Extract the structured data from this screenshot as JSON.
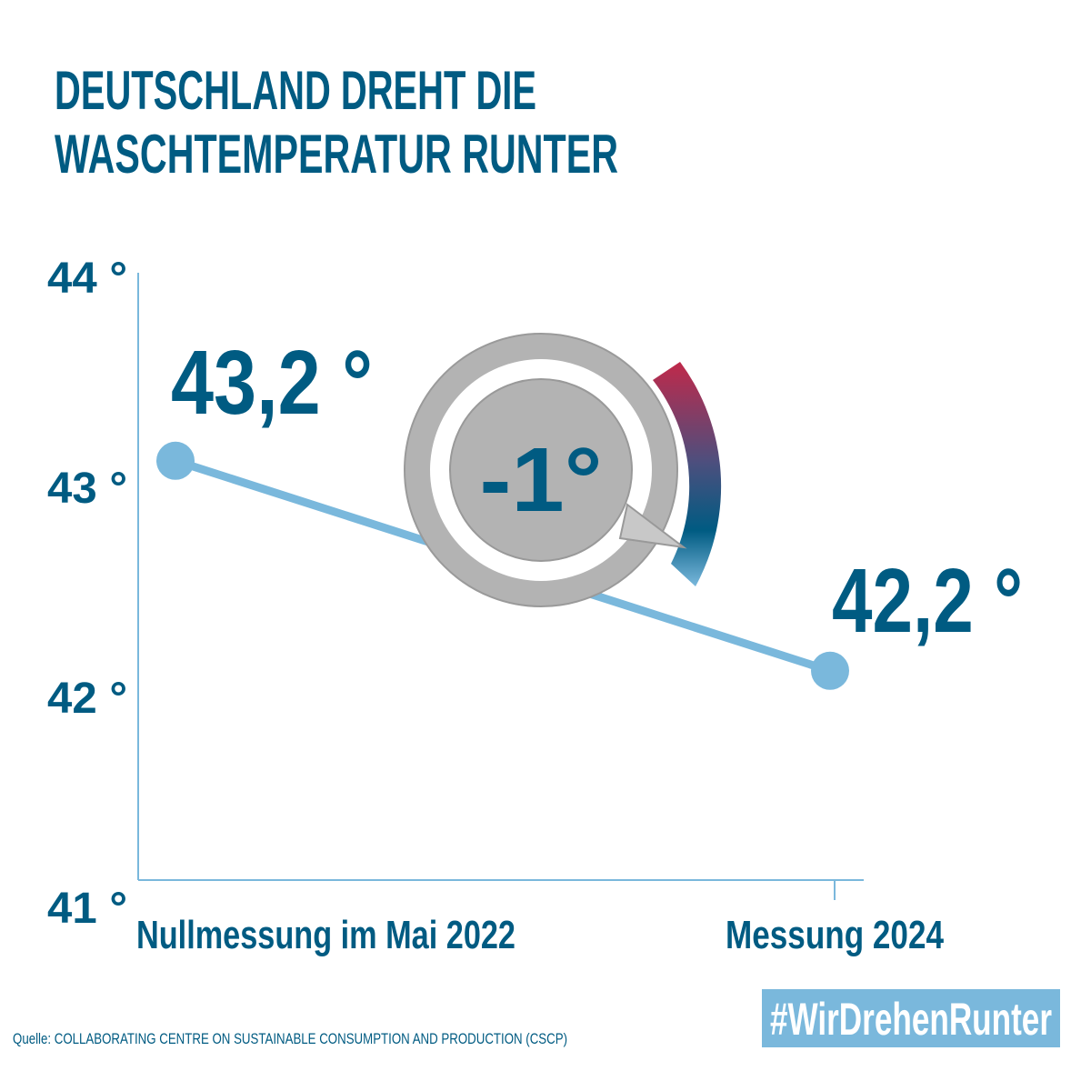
{
  "chart_data": {
    "type": "line",
    "title": [
      "DEUTSCHLAND DREHT DIE",
      "WASCHTEMPERATUR RUNTER"
    ],
    "categories": [
      "Nullmessung im Mai 2022",
      "Messung 2024"
    ],
    "values": [
      43.2,
      42.2
    ],
    "value_labels": [
      "43,2 °",
      "42,2 °"
    ],
    "color": "#7ab8dc",
    "label_color": "#005b82",
    "ylim": [
      41,
      44
    ],
    "yticks": [
      {
        "value": 41,
        "label": "41 °"
      },
      {
        "value": 42,
        "label": "42 °"
      },
      {
        "value": 43,
        "label": "43 °"
      },
      {
        "value": 44,
        "label": "44 °"
      }
    ],
    "grid": false,
    "annotation": "-1°",
    "source": "Quelle: COLLABORATING CENTRE ON SUSTAINABLE CONSUMPTION AND PRODUCTION (CSCP)",
    "hashtag": "#WirDrehenRunter"
  }
}
